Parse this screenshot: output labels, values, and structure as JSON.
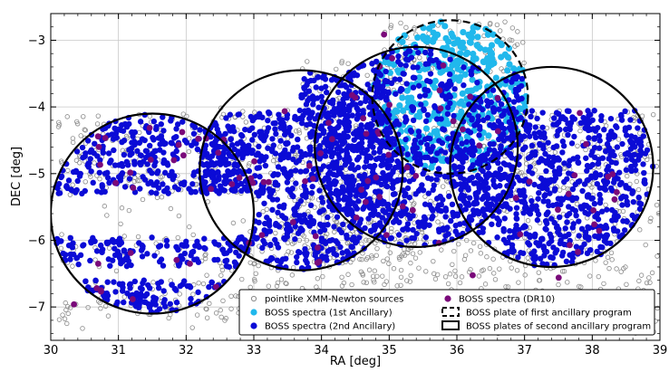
{
  "chart_data": {
    "type": "scatter",
    "xlabel": "RA [deg]",
    "ylabel": "DEC [deg]",
    "xlim": [
      30.0,
      39.0
    ],
    "ylim": [
      -7.5,
      -2.6
    ],
    "x_ticks": [
      "30",
      "31",
      "32",
      "33",
      "34",
      "35",
      "36",
      "37",
      "38",
      "39"
    ],
    "y_ticks": [
      "-7",
      "-6",
      "-5",
      "-4",
      "-3"
    ],
    "grid": true,
    "legend_placement": "bottom-right",
    "colors": {
      "xmm": "#8a8a8a",
      "dr10": "#7a0a7a",
      "first": "#20b8ec",
      "second": "#0b0bd6"
    },
    "series": [
      {
        "name": "pointlike XMM-Newton sources",
        "marker": "open-circle",
        "color": "#8a8a8a",
        "regions": [
          {
            "x": [
              30.1,
              39.0
            ],
            "y": [
              -7.4,
              -4.0
            ]
          },
          {
            "x": [
              33.7,
              35.2
            ],
            "y": [
              -4.0,
              -3.3
            ]
          },
          {
            "x": [
              34.9,
              37.0
            ],
            "y": [
              -3.5,
              -2.7
            ]
          },
          {
            "x": [
              33.5,
              35.6
            ],
            "y": [
              -6.4,
              -5.3
            ]
          }
        ]
      },
      {
        "name": "BOSS spectra (DR10)",
        "marker": "filled-circle",
        "color": "#7a0a7a"
      },
      {
        "name": "BOSS spectra (1st Ancillary)",
        "marker": "filled-circle",
        "color": "#20b8ec"
      },
      {
        "name": "BOSS spectra (2nd Ancillary)",
        "marker": "filled-circle",
        "color": "#0b0bd6"
      }
    ],
    "plates": [
      {
        "program": "BOSS plate of first ancillary program",
        "line": "dashed",
        "ra": 35.9,
        "dec": -3.85,
        "radius_deg": 1.15
      },
      {
        "program": "BOSS plates of second ancillary program",
        "line": "solid",
        "ra": 31.5,
        "dec": -5.6,
        "radius_deg": 1.5
      },
      {
        "program": "BOSS plates of second ancillary program",
        "line": "solid",
        "ra": 33.7,
        "dec": -4.95,
        "radius_deg": 1.5
      },
      {
        "program": "BOSS plates of second ancillary program",
        "line": "solid",
        "ra": 35.4,
        "dec": -4.6,
        "radius_deg": 1.5
      },
      {
        "program": "BOSS plates of second ancillary program",
        "line": "solid",
        "ra": 37.4,
        "dec": -4.9,
        "radius_deg": 1.5
      }
    ],
    "legend": [
      {
        "label": "pointlike XMM-Newton sources",
        "symbol": "open-circle",
        "color": "#8a8a8a"
      },
      {
        "label": "BOSS spectra (DR10)",
        "symbol": "filled-circle",
        "color": "#7a0a7a"
      },
      {
        "label": "BOSS spectra (1st Ancillary)",
        "symbol": "filled-circle",
        "color": "#20b8ec"
      },
      {
        "label": "BOSS plate of first ancillary program",
        "symbol": "dashed-box"
      },
      {
        "label": "BOSS spectra (2nd Ancillary)",
        "symbol": "filled-circle",
        "color": "#0b0bd6"
      },
      {
        "label": "BOSS plates of second ancillary program",
        "symbol": "solid-box"
      }
    ]
  }
}
